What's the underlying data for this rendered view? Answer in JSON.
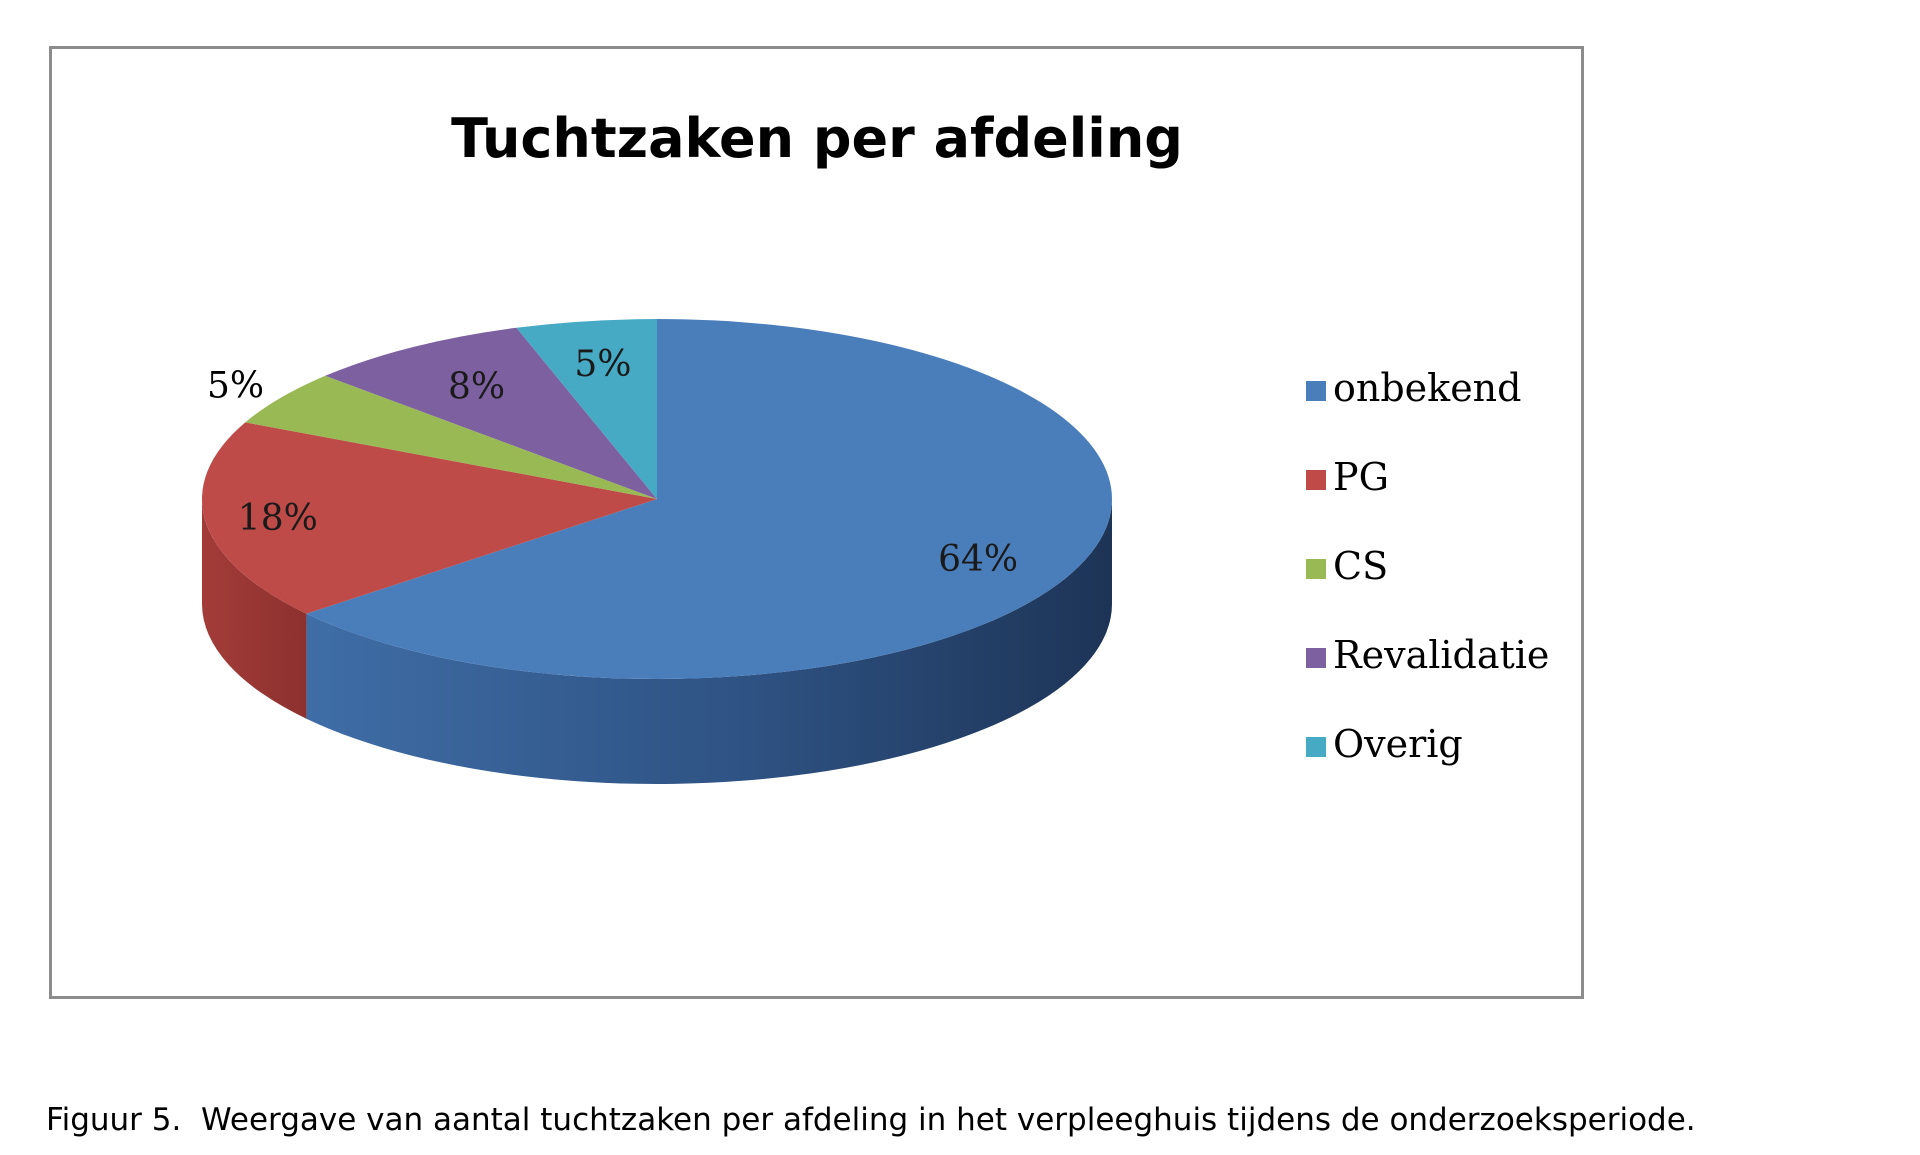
{
  "chart_data": {
    "type": "pie",
    "title": "Tuchtzaken per afdeling",
    "categories": [
      "onbekend",
      "PG",
      "CS",
      "Revalidatie",
      "Overig"
    ],
    "values": [
      64,
      18,
      5,
      8,
      5
    ],
    "value_labels": [
      "64%",
      "18%",
      "5%",
      "8%",
      "5%"
    ],
    "colors": [
      "#4a7ebb",
      "#be4b48",
      "#98b954",
      "#7d60a0",
      "#46aac5"
    ],
    "legend_position": "right",
    "style": "3d-pie"
  },
  "caption": {
    "text": "Figuur 5.  Weergave van aantal tuchtzaken per afdeling in het verpleeghuis tijdens de onderzoeksperiode."
  }
}
